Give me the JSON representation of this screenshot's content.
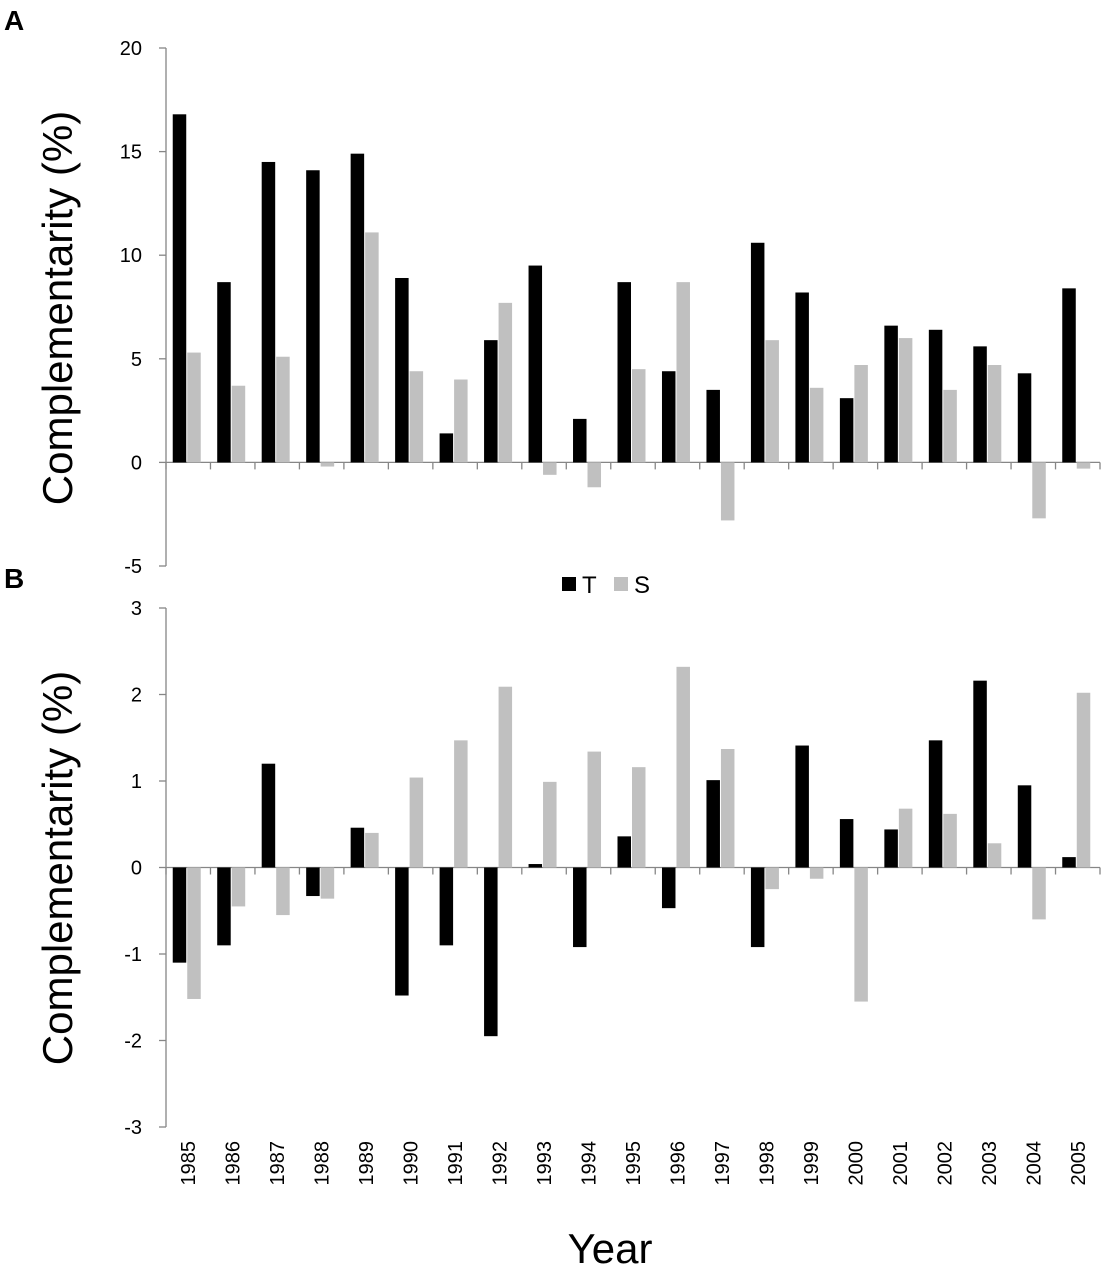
{
  "chart_data": [
    {
      "panel": "A",
      "type": "bar",
      "ylabel": "Complementarity (%)",
      "ylim": [
        -5,
        20
      ],
      "yticks": [
        -5,
        0,
        5,
        10,
        15,
        20
      ],
      "categories": [
        "1985",
        "1986",
        "1987",
        "1988",
        "1989",
        "1990",
        "1991",
        "1992",
        "1993",
        "1994",
        "1995",
        "1996",
        "1997",
        "1998",
        "1999",
        "2000",
        "2001",
        "2002",
        "2003",
        "2004",
        "2005"
      ],
      "series": [
        {
          "name": "T",
          "color": "#000000",
          "values": [
            16.8,
            8.7,
            14.5,
            14.1,
            14.9,
            8.9,
            1.4,
            5.9,
            9.5,
            2.1,
            8.7,
            4.4,
            3.5,
            10.6,
            8.2,
            3.1,
            6.6,
            6.4,
            5.6,
            4.3,
            8.4
          ]
        },
        {
          "name": "S",
          "color": "#c0c0c0",
          "values": [
            5.3,
            3.7,
            5.1,
            -0.2,
            11.1,
            4.4,
            4.0,
            7.7,
            -0.6,
            -1.2,
            4.5,
            8.7,
            -2.8,
            5.9,
            3.6,
            4.7,
            6.0,
            3.5,
            4.7,
            -2.7,
            -0.3
          ]
        }
      ]
    },
    {
      "panel": "B",
      "type": "bar",
      "ylabel": "Complementarity (%)",
      "xlabel": "Year",
      "ylim": [
        -3,
        3
      ],
      "yticks": [
        -3,
        -2,
        -1,
        0,
        1,
        2,
        3
      ],
      "categories": [
        "1985",
        "1986",
        "1987",
        "1988",
        "1989",
        "1990",
        "1991",
        "1992",
        "1993",
        "1994",
        "1995",
        "1996",
        "1997",
        "1998",
        "1999",
        "2000",
        "2001",
        "2002",
        "2003",
        "2004",
        "2005"
      ],
      "legend": {
        "position": "top-center",
        "items": [
          "T",
          "S"
        ]
      },
      "series": [
        {
          "name": "T",
          "color": "#000000",
          "values": [
            -1.1,
            -0.9,
            1.2,
            -0.33,
            0.46,
            -1.48,
            -0.9,
            -1.95,
            0.04,
            -0.92,
            0.36,
            -0.47,
            1.01,
            -0.92,
            1.41,
            0.56,
            0.44,
            1.47,
            2.16,
            0.95,
            0.12
          ]
        },
        {
          "name": "S",
          "color": "#c0c0c0",
          "values": [
            -1.52,
            -0.45,
            -0.55,
            -0.36,
            0.4,
            1.04,
            1.47,
            2.09,
            0.99,
            1.34,
            1.16,
            2.32,
            1.37,
            -0.25,
            -0.13,
            -1.55,
            0.68,
            0.62,
            0.28,
            -0.6,
            2.02
          ]
        }
      ]
    }
  ]
}
